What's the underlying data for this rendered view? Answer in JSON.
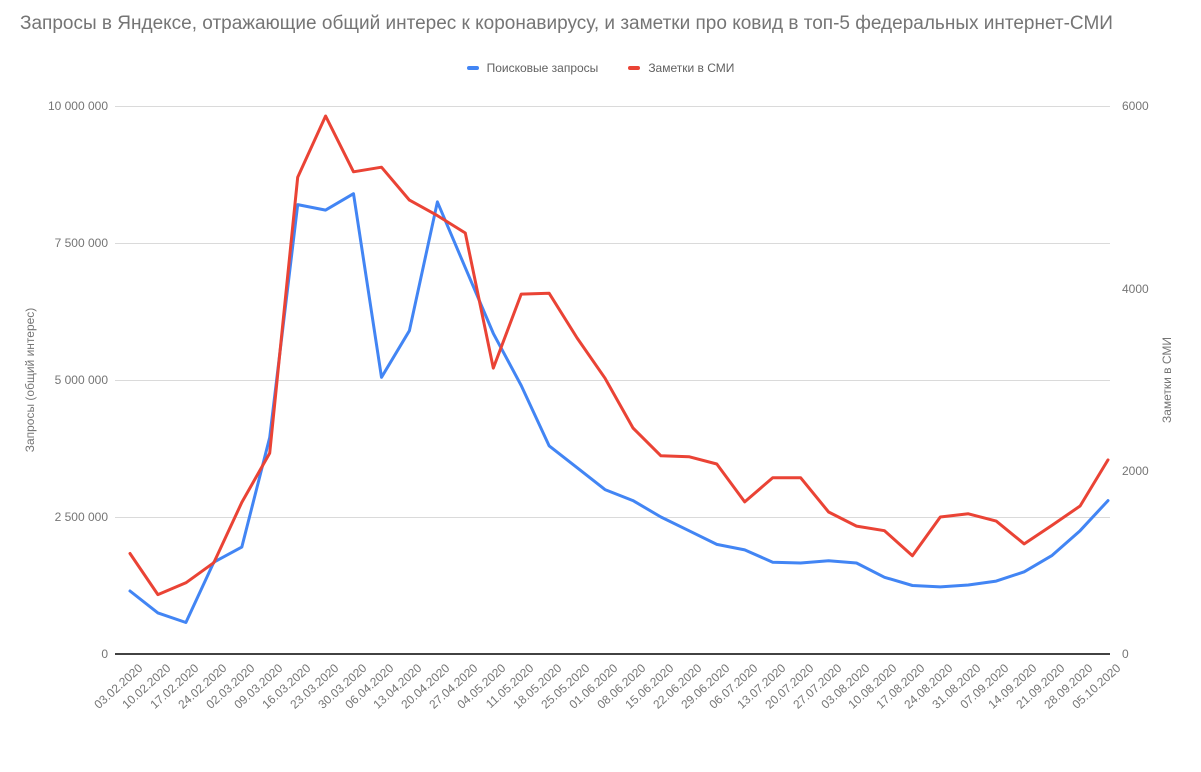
{
  "chart_data": {
    "type": "line",
    "title": "Запросы в Яндексе, отражающие общий интерес к коронавирусу, и заметки про ковид в топ-5 федеральных интернет-СМИ",
    "grid": true,
    "legend_position": "top",
    "categories": [
      "03.02.2020",
      "10.02.2020",
      "17.02.2020",
      "24.02.2020",
      "02.03.2020",
      "09.03.2020",
      "16.03.2020",
      "23.03.2020",
      "30.03.2020",
      "06.04.2020",
      "13.04.2020",
      "20.04.2020",
      "27.04.2020",
      "04.05.2020",
      "11.05.2020",
      "18.05.2020",
      "25.05.2020",
      "01.06.2020",
      "08.06.2020",
      "15.06.2020",
      "22.06.2020",
      "29.06.2020",
      "06.07.2020",
      "13.07.2020",
      "20.07.2020",
      "27.07.2020",
      "03.08.2020",
      "10.08.2020",
      "17.08.2020",
      "24.08.2020",
      "31.08.2020",
      "07.09.2020",
      "14.09.2020",
      "21.09.2020",
      "28.09.2020",
      "05.10.2020"
    ],
    "series": [
      {
        "name": "Поисковые запросы",
        "color": "#4285f4",
        "axis": "left",
        "values": [
          1150000,
          750000,
          575000,
          1675000,
          1950000,
          3950000,
          8200000,
          8100000,
          8400000,
          5050000,
          5900000,
          8250000,
          7050000,
          5850000,
          4900000,
          3800000,
          3400000,
          3000000,
          2800000,
          2500000,
          2250000,
          2000000,
          1900000,
          1675000,
          1660000,
          1700000,
          1660000,
          1400000,
          1250000,
          1225000,
          1260000,
          1330000,
          1500000,
          1800000,
          2250000,
          2800000
        ]
      },
      {
        "name": "Заметки в СМИ",
        "color": "#ea4335",
        "axis": "right",
        "values": [
          1100,
          650,
          780,
          1000,
          1660,
          2200,
          5220,
          5890,
          5280,
          5330,
          4970,
          4800,
          4610,
          3130,
          3940,
          3950,
          3460,
          3020,
          2475,
          2170,
          2160,
          2080,
          1665,
          1930,
          1930,
          1555,
          1400,
          1350,
          1075,
          1500,
          1535,
          1455,
          1205,
          1410,
          1620,
          2125
        ]
      }
    ],
    "left_axis": {
      "title": "Запросы (общий интерес)",
      "min": 0,
      "max": 10000000,
      "ticks": [
        {
          "value": 0,
          "label": "0"
        },
        {
          "value": 2500000,
          "label": "2 500 000"
        },
        {
          "value": 5000000,
          "label": "5 000 000"
        },
        {
          "value": 7500000,
          "label": "7 500 000"
        },
        {
          "value": 10000000,
          "label": "10 000 000"
        }
      ]
    },
    "right_axis": {
      "title": "Заметки в СМИ",
      "min": 0,
      "max": 6000,
      "ticks": [
        {
          "value": 0,
          "label": "0"
        },
        {
          "value": 2000,
          "label": "2000"
        },
        {
          "value": 4000,
          "label": "4000"
        },
        {
          "value": 6000,
          "label": "6000"
        }
      ]
    }
  }
}
